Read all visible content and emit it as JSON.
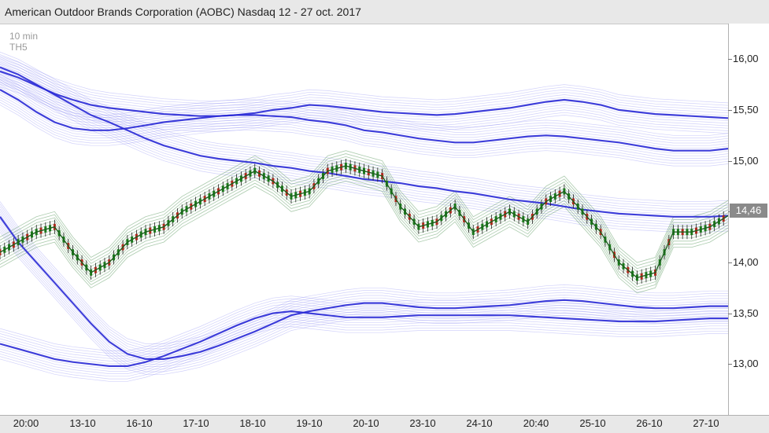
{
  "header": {
    "title": "American Outdoor Brands Corporation (AOBC) Nasdaq 12 - 27 oct. 2017"
  },
  "interval": {
    "line1": "10 min",
    "line2": "TH5"
  },
  "colors": {
    "bands": "#2a2ad6",
    "bands_light": "#7d7df0",
    "green": "#2e7d32",
    "candle_up": "#1a7a1a",
    "candle_down": "#b0281c"
  },
  "chart_data": {
    "type": "line",
    "title": "American Outdoor Brands Corporation (AOBC) Nasdaq 12 - 27 oct. 2017",
    "ylim": [
      12.5,
      16.35
    ],
    "y_ticks": [
      "16,00",
      "15,50",
      "15,00",
      "14,50",
      "14,00",
      "13,50",
      "13,00"
    ],
    "y_tick_values": [
      16.0,
      15.5,
      15.0,
      14.5,
      14.0,
      13.5,
      13.0
    ],
    "x_ticks": [
      "20:00",
      "13-10",
      "16-10",
      "17-10",
      "18-10",
      "19-10",
      "20-10",
      "23-10",
      "24-10",
      "20:40",
      "25-10",
      "26-10",
      "27-10"
    ],
    "last_price": "14,46",
    "grid": false,
    "series": [
      {
        "values": [
          14.1,
          14.2,
          14.3,
          14.35,
          14.1,
          13.9,
          14.0,
          14.2,
          14.3,
          14.35,
          14.5,
          14.6,
          14.7,
          14.8,
          14.9,
          14.8,
          14.65,
          14.7,
          14.9,
          14.95,
          14.9,
          14.85,
          14.55,
          14.35,
          14.4,
          14.55,
          14.3,
          14.4,
          14.5,
          14.4,
          14.6,
          14.7,
          14.5,
          14.3,
          14.0,
          13.85,
          13.9,
          14.3,
          14.3,
          14.35,
          14.46
        ]
      },
      {
        "values": [
          15.92,
          15.85,
          15.75,
          15.65,
          15.55,
          15.45,
          15.38,
          15.3,
          15.22,
          15.15,
          15.1,
          15.05,
          15.02,
          15.0,
          14.98,
          14.95,
          14.93,
          14.9,
          14.88,
          14.85,
          14.82,
          14.8,
          14.78,
          14.75,
          14.73,
          14.7,
          14.68,
          14.65,
          14.62,
          14.6,
          14.58,
          14.55,
          14.52,
          14.5,
          14.48,
          14.47,
          14.46,
          14.45,
          14.45,
          14.45,
          14.46
        ]
      },
      {
        "values": [
          15.88,
          15.82,
          15.74,
          15.66,
          15.6,
          15.55,
          15.52,
          15.5,
          15.48,
          15.46,
          15.45,
          15.44,
          15.44,
          15.45,
          15.47,
          15.5,
          15.52,
          15.55,
          15.54,
          15.52,
          15.5,
          15.48,
          15.47,
          15.46,
          15.45,
          15.46,
          15.48,
          15.5,
          15.52,
          15.55,
          15.58,
          15.6,
          15.58,
          15.55,
          15.5,
          15.48,
          15.46,
          15.45,
          15.44,
          15.43,
          15.42
        ]
      },
      {
        "values": [
          14.45,
          14.2,
          14.0,
          13.8,
          13.6,
          13.4,
          13.22,
          13.1,
          13.05,
          13.05,
          13.08,
          13.12,
          13.18,
          13.25,
          13.32,
          13.4,
          13.48,
          13.52,
          13.55,
          13.58,
          13.6,
          13.6,
          13.58,
          13.56,
          13.55,
          13.55,
          13.56,
          13.57,
          13.58,
          13.6,
          13.62,
          13.63,
          13.62,
          13.6,
          13.58,
          13.56,
          13.55,
          13.55,
          13.56,
          13.57,
          13.57
        ]
      },
      {
        "values": [
          13.2,
          13.15,
          13.1,
          13.05,
          13.02,
          13.0,
          12.98,
          12.98,
          13.02,
          13.08,
          13.15,
          13.22,
          13.3,
          13.38,
          13.45,
          13.5,
          13.52,
          13.5,
          13.48,
          13.46,
          13.46,
          13.46,
          13.47,
          13.48,
          13.48,
          13.48,
          13.48,
          13.48,
          13.48,
          13.47,
          13.46,
          13.45,
          13.44,
          13.43,
          13.42,
          13.42,
          13.42,
          13.43,
          13.44,
          13.45,
          13.45
        ]
      },
      {
        "values": [
          15.7,
          15.6,
          15.48,
          15.38,
          15.32,
          15.3,
          15.3,
          15.32,
          15.35,
          15.38,
          15.4,
          15.42,
          15.44,
          15.45,
          15.45,
          15.44,
          15.43,
          15.4,
          15.38,
          15.35,
          15.3,
          15.28,
          15.25,
          15.22,
          15.2,
          15.18,
          15.18,
          15.2,
          15.22,
          15.24,
          15.25,
          15.24,
          15.22,
          15.2,
          15.18,
          15.15,
          15.12,
          15.1,
          15.1,
          15.1,
          15.12
        ]
      }
    ]
  }
}
